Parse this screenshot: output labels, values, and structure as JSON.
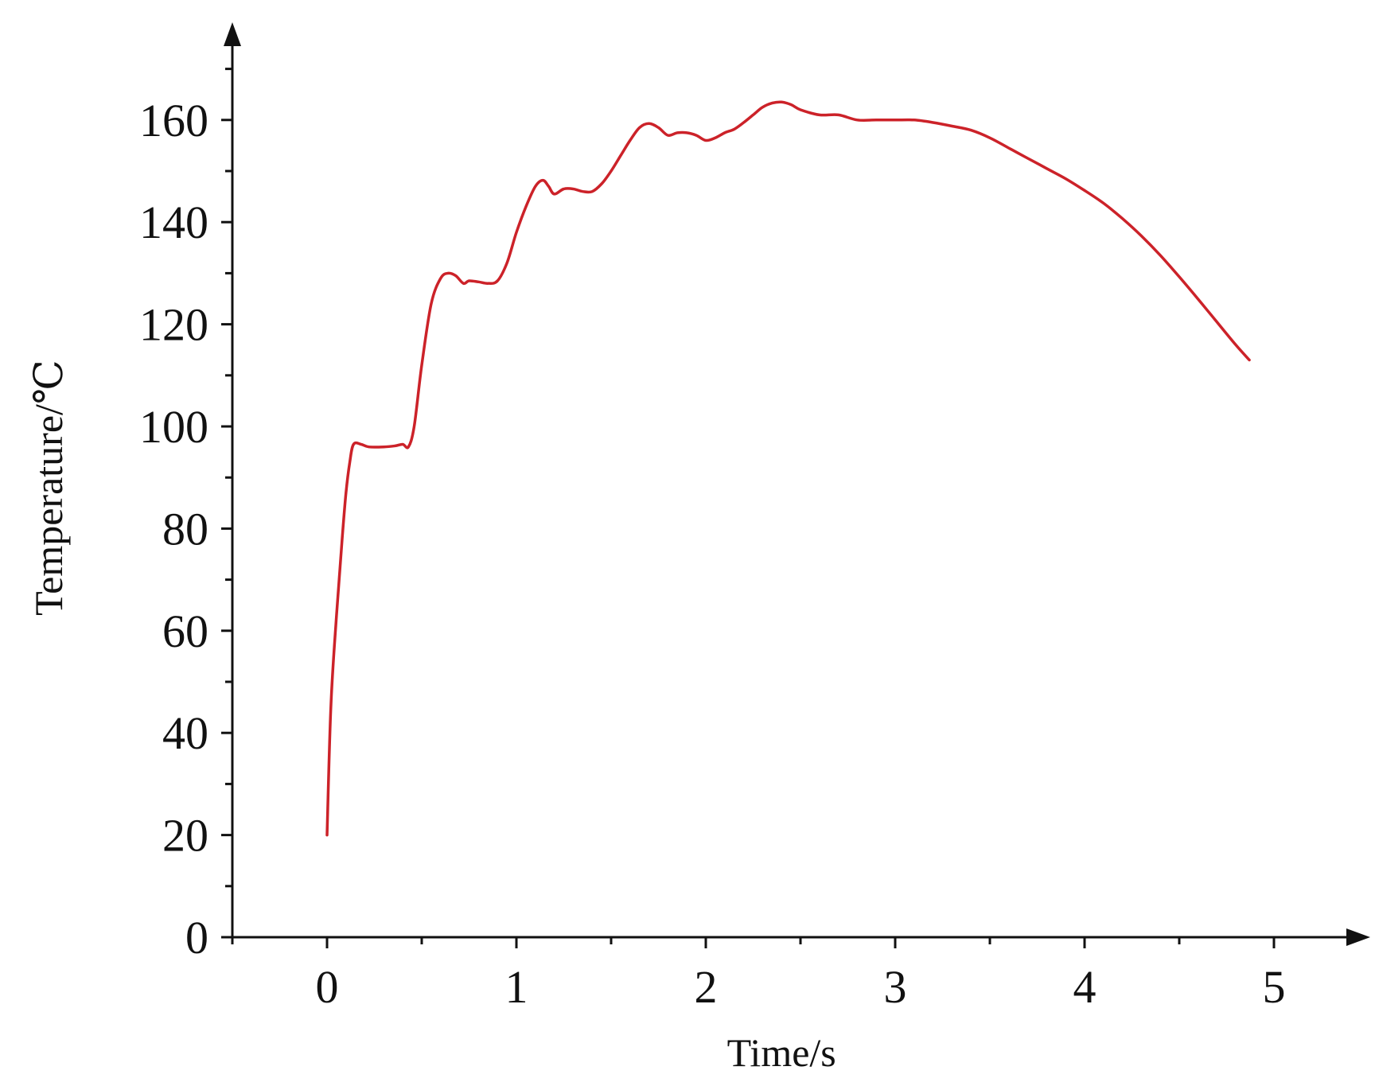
{
  "chart_data": {
    "type": "line",
    "title": "",
    "xlabel": "Time/s",
    "ylabel": "Temperature/℃",
    "xlim": [
      -0.5,
      5.5
    ],
    "ylim": [
      0,
      175
    ],
    "x_ticks": [
      0,
      1,
      2,
      3,
      4,
      5
    ],
    "y_ticks": [
      0,
      20,
      40,
      60,
      80,
      100,
      120,
      140,
      160
    ],
    "x_minor_step": 0.5,
    "y_minor_step": 10,
    "grid": false,
    "legend": "none",
    "colors": {
      "line": "#cc2229",
      "axis": "#111111"
    },
    "series": [
      {
        "x": [
          0,
          0.02,
          0.05,
          0.08,
          0.1,
          0.12,
          0.14,
          0.18,
          0.22,
          0.3,
          0.36,
          0.4,
          0.43,
          0.46,
          0.5,
          0.55,
          0.6,
          0.64,
          0.68,
          0.72,
          0.75,
          0.8,
          0.85,
          0.9,
          0.95,
          1.0,
          1.05,
          1.1,
          1.14,
          1.17,
          1.2,
          1.25,
          1.3,
          1.35,
          1.4,
          1.45,
          1.5,
          1.55,
          1.6,
          1.65,
          1.7,
          1.75,
          1.8,
          1.85,
          1.9,
          1.95,
          2.0,
          2.05,
          2.1,
          2.15,
          2.2,
          2.25,
          2.3,
          2.35,
          2.4,
          2.45,
          2.5,
          2.6,
          2.7,
          2.8,
          2.9,
          3.0,
          3.1,
          3.2,
          3.3,
          3.4,
          3.5,
          3.6,
          3.7,
          3.8,
          3.9,
          4.0,
          4.1,
          4.2,
          4.3,
          4.4,
          4.5,
          4.6,
          4.7,
          4.8,
          4.87
        ],
        "y": [
          20,
          45,
          63,
          78,
          87,
          93,
          96.5,
          96.5,
          96,
          96,
          96.2,
          96.5,
          96,
          100,
          112,
          124,
          129,
          130,
          129.5,
          128,
          128.5,
          128.3,
          128,
          128.5,
          132,
          138,
          143,
          147,
          148.2,
          147,
          145.5,
          146.5,
          146.5,
          146,
          146,
          147.5,
          150,
          153,
          156,
          158.5,
          159.3,
          158.5,
          157,
          157.5,
          157.5,
          157,
          156,
          156.5,
          157.5,
          158.2,
          159.5,
          161,
          162.5,
          163.3,
          163.5,
          163,
          162,
          161,
          161,
          160,
          160,
          160,
          160,
          159.5,
          158.8,
          158,
          156.5,
          154.5,
          152.5,
          150.5,
          148.5,
          146.2,
          143.7,
          140.7,
          137.3,
          133.5,
          129.3,
          124.9,
          120.4,
          115.9,
          113
        ]
      }
    ]
  }
}
